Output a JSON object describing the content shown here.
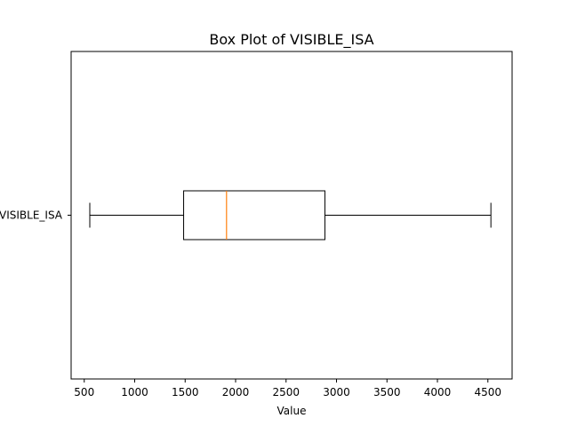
{
  "chart_data": {
    "type": "box",
    "orientation": "horizontal",
    "title": "Box Plot of VISIBLE_ISA",
    "xlabel": "Value",
    "ylabel": "",
    "xlim": [
      370,
      4740
    ],
    "x_ticks": [
      500,
      1000,
      1500,
      2000,
      2500,
      3000,
      3500,
      4000,
      4500
    ],
    "series": [
      {
        "name": "VISIBLE_ISA",
        "whisker_low": 555,
        "q1": 1485,
        "median": 1910,
        "q3": 2885,
        "whisker_high": 4530
      }
    ],
    "colors": {
      "box": "#000000",
      "median": "#ff7f0e",
      "whisker": "#000000"
    },
    "grid": false
  }
}
